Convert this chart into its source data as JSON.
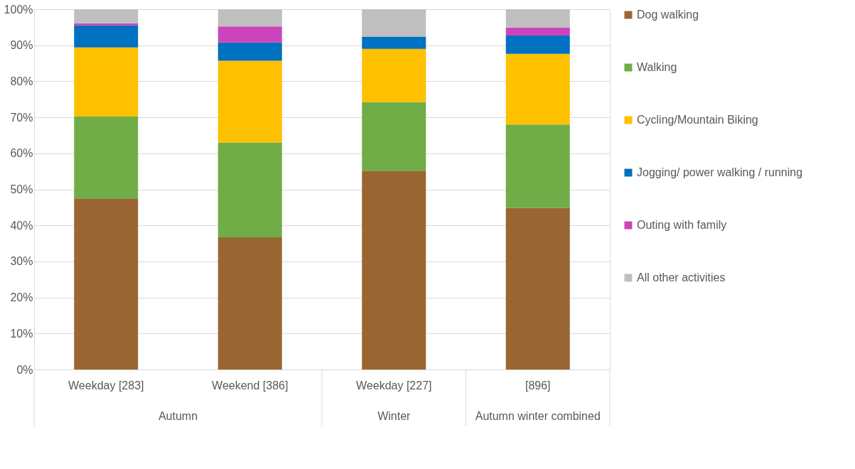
{
  "chart_data": {
    "type": "bar",
    "stacked": true,
    "categories": [
      "Weekday [283]",
      "Weekend [386]",
      "Weekday [227]",
      "[896]"
    ],
    "series": [
      {
        "name": "Dog walking",
        "color": "#996633",
        "values": [
          47.5,
          36.7,
          55.2,
          44.8
        ]
      },
      {
        "name": "Walking",
        "color": "#70ad47",
        "values": [
          22.7,
          26.3,
          19.0,
          23.2
        ]
      },
      {
        "name": "Cycling/Mountain Biking",
        "color": "#ffc000",
        "values": [
          19.2,
          22.7,
          14.8,
          19.6
        ]
      },
      {
        "name": "Jogging/ power walking / running",
        "color": "#0070c0",
        "values": [
          6.1,
          5.1,
          3.4,
          5.1
        ]
      },
      {
        "name": "Outing with family",
        "color": "#cc44bb",
        "values": [
          0.6,
          4.4,
          0,
          2.2
        ]
      },
      {
        "name": "All other activities",
        "color": "#bfbfbf",
        "values": [
          3.9,
          4.8,
          7.6,
          5.1
        ]
      }
    ],
    "ylim": [
      0,
      100
    ],
    "yticks": [
      {
        "value": 0,
        "label": "0%"
      },
      {
        "value": 10,
        "label": "10%"
      },
      {
        "value": 20,
        "label": "20%"
      },
      {
        "value": 30,
        "label": "30%"
      },
      {
        "value": 40,
        "label": "40%"
      },
      {
        "value": 50,
        "label": "50%"
      },
      {
        "value": 60,
        "label": "60%"
      },
      {
        "value": 70,
        "label": "70%"
      },
      {
        "value": 80,
        "label": "80%"
      },
      {
        "value": 90,
        "label": "90%"
      },
      {
        "value": 100,
        "label": "100%"
      }
    ],
    "annotations": [
      "Autumn",
      "Winter",
      "Autumn winter combined"
    ],
    "grid": "y",
    "legend": "right"
  }
}
